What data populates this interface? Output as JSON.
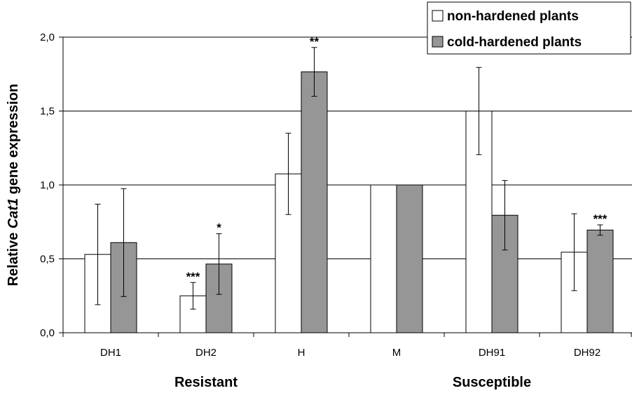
{
  "chart_data": {
    "type": "bar",
    "categories": [
      "DH1",
      "DH2",
      "H",
      "M",
      "DH91",
      "DH92"
    ],
    "groups": [
      {
        "label": "Resistant",
        "categories": [
          "DH1",
          "DH2",
          "H"
        ]
      },
      {
        "label": "Susceptible",
        "categories": [
          "M",
          "DH91",
          "DH92"
        ]
      }
    ],
    "series": [
      {
        "name": "non-hardened plants",
        "color": "#ffffff",
        "values": [
          0.53,
          0.25,
          1.075,
          1.0,
          1.5,
          0.545
        ],
        "errors": [
          0.34,
          0.09,
          0.275,
          0.0,
          0.295,
          0.26
        ],
        "significance": [
          "",
          "***",
          "",
          "",
          "",
          ""
        ]
      },
      {
        "name": "cold-hardened plants",
        "color": "#969696",
        "values": [
          0.61,
          0.465,
          1.765,
          1.0,
          0.795,
          0.695
        ],
        "errors": [
          0.365,
          0.205,
          0.165,
          0.0,
          0.235,
          0.035
        ],
        "significance": [
          "",
          "*",
          "**",
          "",
          "",
          "***"
        ]
      }
    ],
    "y_tick_labels": [
      "0,0",
      "0,5",
      "1,0",
      "1,5",
      "2,0"
    ],
    "y_tick_values": [
      0,
      0.5,
      1.0,
      1.5,
      2.0
    ],
    "ylim": [
      0,
      2.0
    ],
    "ylabel_parts": [
      "Relative ",
      "Cat1",
      " gene expression"
    ],
    "xlabel": "",
    "grid": "horizontal",
    "legend_position": "top-right"
  }
}
